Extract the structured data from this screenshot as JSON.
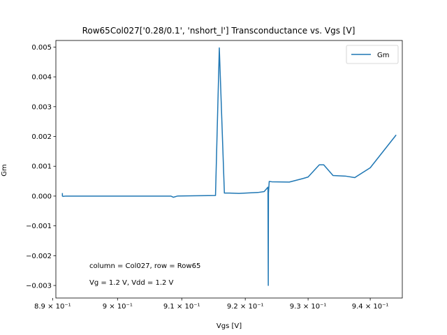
{
  "chart_data": {
    "type": "line",
    "title": "Row65Col027['0.28/0.1', 'nshort_l'] Transconductance vs. Vgs [V]",
    "xlabel": "Vgs [V]",
    "ylabel": "Gm",
    "xscale": "log",
    "xlim": [
      0.8905,
      0.9452
    ],
    "ylim": [
      -0.00342,
      0.00522
    ],
    "grid": false,
    "legend_position": "top-right",
    "x_ticks": [
      {
        "value": 0.89,
        "label": "8.9 × 10⁻¹"
      },
      {
        "value": 0.9,
        "label": "9 × 10⁻¹"
      },
      {
        "value": 0.91,
        "label": "9.1 × 10⁻¹"
      },
      {
        "value": 0.92,
        "label": "9.2 × 10⁻¹"
      },
      {
        "value": 0.93,
        "label": "9.3 × 10⁻¹"
      },
      {
        "value": 0.94,
        "label": "9.4 × 10⁻¹"
      }
    ],
    "y_ticks": [
      {
        "value": 0.005,
        "label": "0.005"
      },
      {
        "value": 0.004,
        "label": "0.004"
      },
      {
        "value": 0.003,
        "label": "0.003"
      },
      {
        "value": 0.002,
        "label": "0.002"
      },
      {
        "value": 0.001,
        "label": "0.001"
      },
      {
        "value": 0.0,
        "label": "0.000"
      },
      {
        "value": -0.001,
        "label": "−0.001"
      },
      {
        "value": -0.002,
        "label": "−0.002"
      },
      {
        "value": -0.003,
        "label": "−0.003"
      }
    ],
    "annotations": [
      "column = Col027, row = Row65",
      "Vg = 1.2 V, Vdd = 1.2 V"
    ],
    "series": [
      {
        "name": "Gm",
        "color": "#1f77b4",
        "x": [
          0.8915,
          0.8915,
          0.8916,
          0.892,
          0.895,
          0.9,
          0.9045,
          0.9083,
          0.9087,
          0.9093,
          0.912,
          0.9153,
          0.9159,
          0.9167,
          0.9175,
          0.919,
          0.922,
          0.923,
          0.9236,
          0.92365,
          0.92368,
          0.9238,
          0.9242,
          0.927,
          0.9292,
          0.93,
          0.9318,
          0.9325,
          0.934,
          0.936,
          0.9375,
          0.94,
          0.9442
        ],
        "y": [
          0.0001,
          0.0,
          -1e-05,
          0.0,
          0.0,
          0.0,
          0.0,
          0.0,
          -4e-05,
          0.0,
          1e-05,
          2e-05,
          0.00497,
          0.0001,
          0.0001,
          9e-05,
          0.00012,
          0.00015,
          0.0003,
          -0.003,
          0.0001,
          0.00049,
          0.00048,
          0.00047,
          0.00059,
          0.00064,
          0.00105,
          0.00105,
          0.00069,
          0.00067,
          0.00062,
          0.00095,
          0.00205
        ]
      }
    ]
  }
}
